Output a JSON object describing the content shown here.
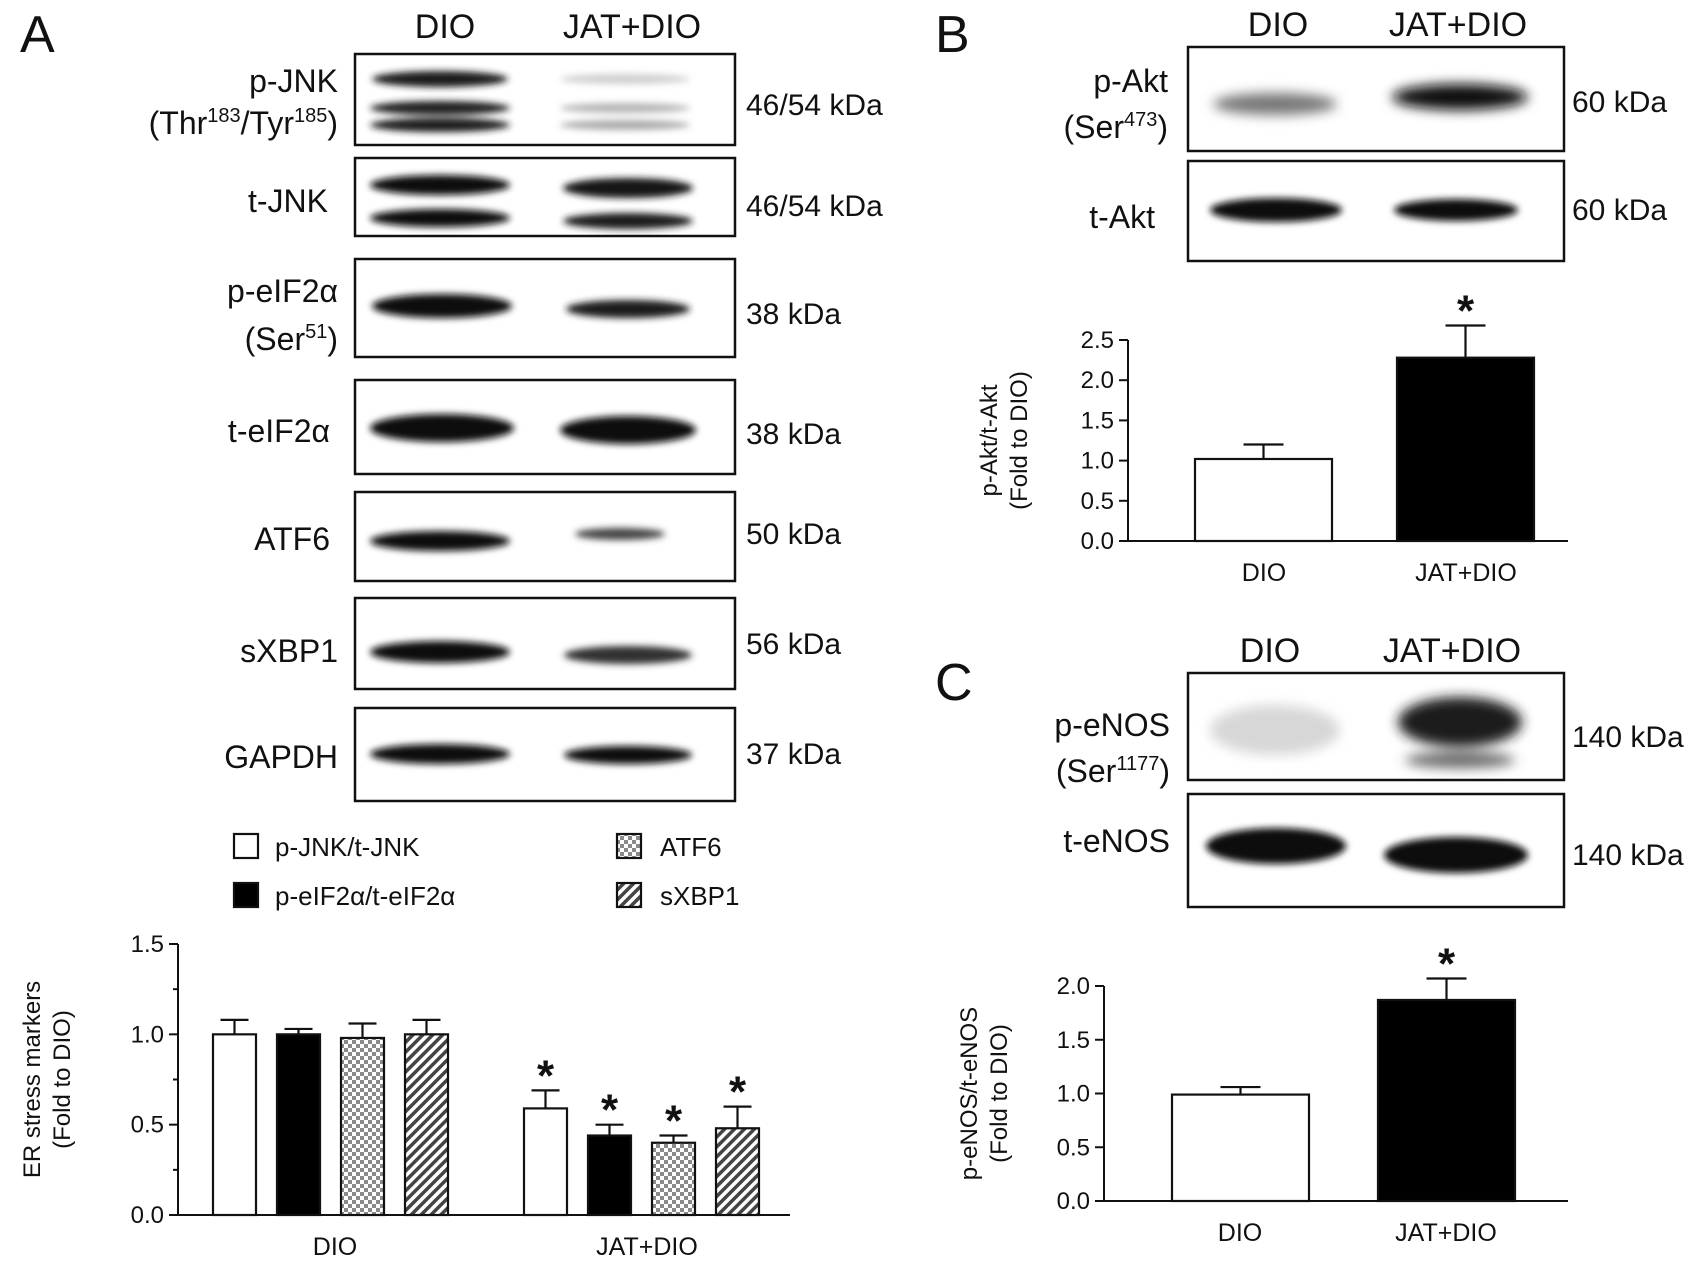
{
  "colors": {
    "background": "#ffffff",
    "ink": "#111111",
    "bar_fill_open": "#ffffff",
    "bar_fill_solid": "#000000"
  },
  "panels": {
    "A": {
      "letter": "A",
      "lanes": [
        "DIO",
        "JAT+DIO"
      ],
      "blots": [
        {
          "name": "p-JNK",
          "name_line2": "(Thr183/Tyr185)",
          "mw": "46/54 kDa"
        },
        {
          "name": "t-JNK",
          "mw": "46/54 kDa"
        },
        {
          "name": "p-eIF2α",
          "name_line2": "(Ser51)",
          "mw": "38 kDa"
        },
        {
          "name": "t-eIF2α",
          "mw": "38 kDa"
        },
        {
          "name": "ATF6",
          "mw": "50 kDa"
        },
        {
          "name": "sXBP1",
          "mw": "56 kDa"
        },
        {
          "name": "GAPDH",
          "mw": "37 kDa"
        }
      ]
    },
    "B": {
      "letter": "B",
      "lanes": [
        "DIO",
        "JAT+DIO"
      ],
      "blots": [
        {
          "name": "p-Akt",
          "name_line2": "(Ser473)",
          "mw": "60 kDa"
        },
        {
          "name": "t-Akt",
          "mw": "60 kDa"
        }
      ]
    },
    "C": {
      "letter": "C",
      "lanes": [
        "DIO",
        "JAT+DIO"
      ],
      "blots": [
        {
          "name": "p-eNOS",
          "name_line2": "(Ser1177)",
          "mw": "140 kDa"
        },
        {
          "name": "t-eNOS",
          "mw": "140 kDa"
        }
      ]
    }
  },
  "chart_data": [
    {
      "panel": "A",
      "type": "bar",
      "ylabel": "ER stress markers",
      "ylabel_line2": "(Fold to DIO)",
      "ylim": [
        0,
        1.5
      ],
      "yticks": [
        "0.0",
        "0.5",
        "1.0",
        "1.5"
      ],
      "categories": [
        "DIO",
        "JAT+DIO"
      ],
      "series": [
        {
          "name": "p-JNK/t-JNK",
          "fill": "open",
          "values": [
            1.0,
            0.59
          ],
          "errors": [
            0.08,
            0.1
          ]
        },
        {
          "name": "p-eIF2α/t-eIF2α",
          "fill": "solid",
          "values": [
            1.0,
            0.44
          ],
          "errors": [
            0.03,
            0.06
          ]
        },
        {
          "name": "ATF6",
          "fill": "checker",
          "values": [
            0.98,
            0.4
          ],
          "errors": [
            0.08,
            0.04
          ]
        },
        {
          "name": "sXBP1",
          "fill": "hatch",
          "values": [
            1.0,
            0.48
          ],
          "errors": [
            0.08,
            0.12
          ]
        }
      ],
      "significance": [
        {
          "category": "JAT+DIO",
          "series": [
            0,
            1,
            2,
            3
          ],
          "mark": "*"
        }
      ]
    },
    {
      "panel": "B",
      "type": "bar",
      "ylabel": "p-Akt/t-Akt",
      "ylabel_line2": "(Fold to DIO)",
      "ylim": [
        0,
        2.5
      ],
      "yticks": [
        "0.0",
        "0.5",
        "1.0",
        "1.5",
        "2.0",
        "2.5"
      ],
      "categories": [
        "DIO",
        "JAT+DIO"
      ],
      "values": [
        1.02,
        2.28
      ],
      "errors": [
        0.18,
        0.4
      ],
      "fills": [
        "open",
        "solid"
      ],
      "significance": [
        {
          "category": "JAT+DIO",
          "mark": "*"
        }
      ]
    },
    {
      "panel": "C",
      "type": "bar",
      "ylabel": "p-eNOS/t-eNOS",
      "ylabel_line2": "(Fold to DIO)",
      "ylim": [
        0,
        2.0
      ],
      "yticks": [
        "0.0",
        "0.5",
        "1.0",
        "1.5",
        "2.0"
      ],
      "categories": [
        "DIO",
        "JAT+DIO"
      ],
      "values": [
        0.99,
        1.87
      ],
      "errors": [
        0.07,
        0.2
      ],
      "fills": [
        "open",
        "solid"
      ],
      "significance": [
        {
          "category": "JAT+DIO",
          "mark": "*"
        }
      ]
    }
  ]
}
